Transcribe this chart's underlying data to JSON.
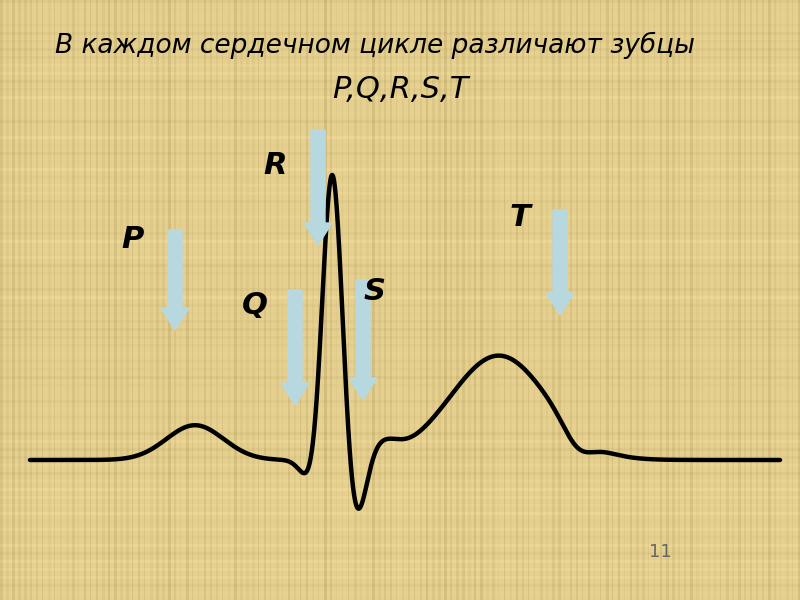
{
  "title_line1": "В каждом сердечном цикле различают зубцы",
  "title_line2": "P,Q,R,S,T",
  "background_color": "#E5D090",
  "ecg_color": "#000000",
  "ecg_linewidth": 3.2,
  "arrow_color": "#B8D8E0",
  "text_color": "#000000",
  "label_fontsize": 22,
  "title1_fontsize": 19,
  "title2_fontsize": 22,
  "page_number": "11",
  "fig_width": 8.0,
  "fig_height": 6.0,
  "fig_dpi": 100
}
